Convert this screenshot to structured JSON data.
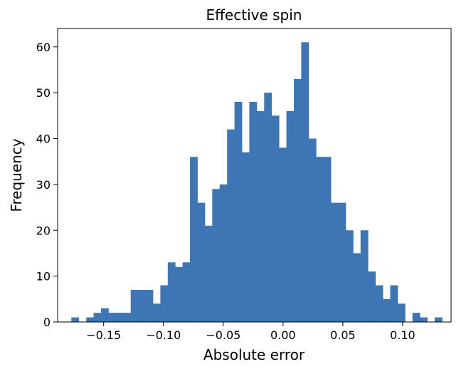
{
  "chart_data": {
    "type": "bar",
    "title": "Effective spin",
    "xlabel": "Absolute error",
    "ylabel": "Frequency",
    "xlim": [
      -0.1885,
      0.1405
    ],
    "ylim": [
      0,
      64
    ],
    "bar_color": "#3d76b2",
    "bin_width": 0.0062,
    "bins": [
      {
        "x0": -0.177,
        "count": 1
      },
      {
        "x0": -0.1708,
        "count": 0
      },
      {
        "x0": -0.1646,
        "count": 1
      },
      {
        "x0": -0.1584,
        "count": 2
      },
      {
        "x0": -0.1522,
        "count": 3
      },
      {
        "x0": -0.146,
        "count": 2
      },
      {
        "x0": -0.1398,
        "count": 2
      },
      {
        "x0": -0.1336,
        "count": 2
      },
      {
        "x0": -0.1274,
        "count": 7
      },
      {
        "x0": -0.1212,
        "count": 7
      },
      {
        "x0": -0.115,
        "count": 7
      },
      {
        "x0": -0.1088,
        "count": 4
      },
      {
        "x0": -0.1026,
        "count": 8
      },
      {
        "x0": -0.0964,
        "count": 13
      },
      {
        "x0": -0.0902,
        "count": 12
      },
      {
        "x0": -0.084,
        "count": 13
      },
      {
        "x0": -0.0778,
        "count": 36
      },
      {
        "x0": -0.0716,
        "count": 26
      },
      {
        "x0": -0.0654,
        "count": 21
      },
      {
        "x0": -0.0592,
        "count": 29
      },
      {
        "x0": -0.053,
        "count": 30
      },
      {
        "x0": -0.0468,
        "count": 42
      },
      {
        "x0": -0.0406,
        "count": 48
      },
      {
        "x0": -0.0344,
        "count": 37
      },
      {
        "x0": -0.0282,
        "count": 48
      },
      {
        "x0": -0.022,
        "count": 46
      },
      {
        "x0": -0.0158,
        "count": 50
      },
      {
        "x0": -0.0096,
        "count": 45
      },
      {
        "x0": -0.0034,
        "count": 38
      },
      {
        "x0": 0.0028,
        "count": 46
      },
      {
        "x0": 0.009,
        "count": 53
      },
      {
        "x0": 0.0152,
        "count": 61
      },
      {
        "x0": 0.0214,
        "count": 40
      },
      {
        "x0": 0.0276,
        "count": 36
      },
      {
        "x0": 0.0338,
        "count": 36
      },
      {
        "x0": 0.04,
        "count": 26
      },
      {
        "x0": 0.0462,
        "count": 26
      },
      {
        "x0": 0.0524,
        "count": 20
      },
      {
        "x0": 0.0586,
        "count": 15
      },
      {
        "x0": 0.0648,
        "count": 20
      },
      {
        "x0": 0.071,
        "count": 11
      },
      {
        "x0": 0.0772,
        "count": 8
      },
      {
        "x0": 0.0834,
        "count": 5
      },
      {
        "x0": 0.0896,
        "count": 8
      },
      {
        "x0": 0.0958,
        "count": 4
      },
      {
        "x0": 0.102,
        "count": 0
      },
      {
        "x0": 0.1082,
        "count": 2
      },
      {
        "x0": 0.1144,
        "count": 1
      },
      {
        "x0": 0.1206,
        "count": 0
      },
      {
        "x0": 0.1268,
        "count": 1
      }
    ],
    "x_ticks": [
      {
        "value": -0.15,
        "label": "−0.15"
      },
      {
        "value": -0.1,
        "label": "−0.10"
      },
      {
        "value": -0.05,
        "label": "−0.05"
      },
      {
        "value": 0.0,
        "label": "0.00"
      },
      {
        "value": 0.05,
        "label": "0.05"
      },
      {
        "value": 0.1,
        "label": "0.10"
      }
    ],
    "y_ticks": [
      {
        "value": 0,
        "label": "0"
      },
      {
        "value": 10,
        "label": "10"
      },
      {
        "value": 20,
        "label": "20"
      },
      {
        "value": 30,
        "label": "30"
      },
      {
        "value": 40,
        "label": "40"
      },
      {
        "value": 50,
        "label": "50"
      },
      {
        "value": 60,
        "label": "60"
      }
    ],
    "grid": false,
    "legend": "none"
  }
}
